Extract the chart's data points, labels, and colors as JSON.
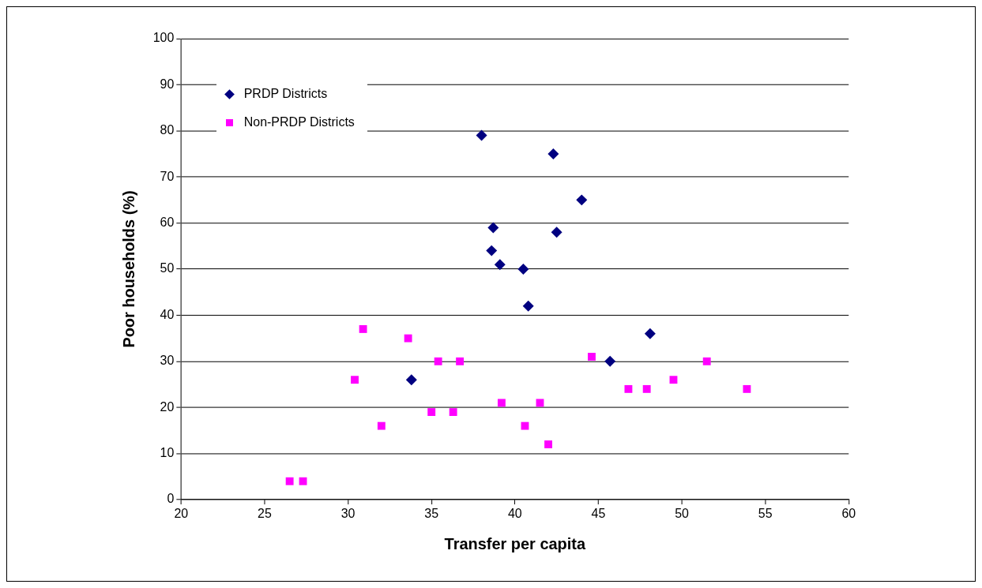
{
  "chart_data": {
    "type": "scatter",
    "xlabel": "Transfer per capita",
    "ylabel": "Poor households (%)",
    "xlim": [
      20,
      60
    ],
    "xticks": [
      20,
      25,
      30,
      35,
      40,
      45,
      50,
      55,
      60
    ],
    "ylim": [
      0,
      100
    ],
    "yticks": [
      0,
      10,
      20,
      30,
      40,
      50,
      60,
      70,
      80,
      90,
      100
    ],
    "grid": "y",
    "legend": "top left",
    "series": [
      {
        "name": "PRDP Districts",
        "color": "#000080",
        "marker": "diamond",
        "x": [
          38.0,
          42.3,
          44.0,
          38.7,
          42.5,
          38.6,
          39.1,
          40.5,
          40.8,
          48.1,
          45.7,
          33.8
        ],
        "values": [
          79,
          75,
          65,
          59,
          58,
          54,
          51,
          50,
          42,
          36,
          30,
          26
        ]
      },
      {
        "name": "Non-PRDP Districts",
        "color": "#ff00ff",
        "marker": "square",
        "x": [
          26.5,
          27.3,
          30.9,
          30.4,
          32.0,
          33.6,
          35.0,
          35.4,
          36.7,
          36.3,
          39.2,
          40.6,
          41.5,
          42.0,
          44.6,
          46.8,
          47.9,
          49.5,
          51.5,
          53.9
        ],
        "values": [
          4,
          4,
          37,
          26,
          16,
          35,
          19,
          30,
          30,
          19,
          21,
          16,
          21,
          12,
          31,
          24,
          24,
          26,
          30,
          24
        ]
      }
    ]
  }
}
